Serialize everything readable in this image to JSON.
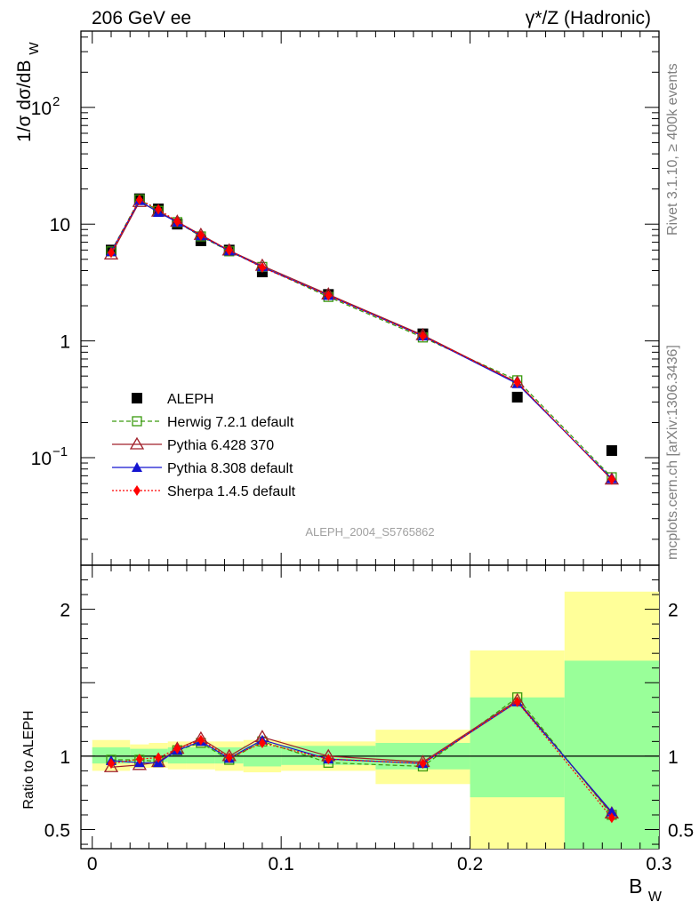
{
  "chart_data": {
    "type": "line",
    "header_left": "206 GeV ee",
    "header_right": "γ*/Z (Hadronic)",
    "ylabel": "1/σ  dσ/dB_W",
    "xlabel": "B_W",
    "ratio_ylabel": "Ratio to ALEPH",
    "analysis_label": "ALEPH_2004_S5765862",
    "rivet_label": "Rivet 3.1.10, ≥ 400k events",
    "mcplots_label": "mcplots.cern.ch [arXiv:1306.3436]",
    "xlim": [
      -0.006,
      0.3
    ],
    "ylim_main": [
      0.012,
      450
    ],
    "ylim_ratio": [
      0.37,
      2.3
    ],
    "x_ticks": [
      "0",
      "0.1",
      "0.2",
      "0.3"
    ],
    "x_tick_values": [
      0,
      0.1,
      0.2,
      0.3
    ],
    "y_ticks_main": [
      {
        "value": 100,
        "label": "10",
        "sup": "2"
      },
      {
        "value": 10,
        "label": "10",
        "sup": ""
      },
      {
        "value": 1,
        "label": "1",
        "sup": ""
      },
      {
        "value": 0.1,
        "label": "10",
        "sup": "−1"
      }
    ],
    "y_ticks_ratio": [
      {
        "value": 0.5,
        "label": "0.5"
      },
      {
        "value": 1,
        "label": "1"
      },
      {
        "value": 2,
        "label": "2"
      }
    ],
    "bin_edges": [
      0,
      0.02,
      0.03,
      0.04,
      0.05,
      0.065,
      0.08,
      0.1,
      0.15,
      0.2,
      0.25,
      0.3
    ],
    "x": [
      0.01,
      0.025,
      0.035,
      0.045,
      0.0575,
      0.0725,
      0.09,
      0.125,
      0.175,
      0.225,
      0.275
    ],
    "band_green": [
      [
        0.95,
        1.06
      ],
      [
        0.96,
        1.05
      ],
      [
        0.96,
        1.05
      ],
      [
        0.95,
        1.06
      ],
      [
        0.95,
        1.06
      ],
      [
        0.95,
        1.06
      ],
      [
        0.93,
        1.07
      ],
      [
        0.94,
        1.07
      ],
      [
        0.91,
        1.09
      ],
      [
        0.72,
        1.4
      ],
      [
        0.37,
        1.65
      ]
    ],
    "band_yellow": [
      [
        0.9,
        1.11
      ],
      [
        0.92,
        1.08
      ],
      [
        0.92,
        1.09
      ],
      [
        0.91,
        1.1
      ],
      [
        0.91,
        1.1
      ],
      [
        0.9,
        1.1
      ],
      [
        0.89,
        1.11
      ],
      [
        0.9,
        1.1
      ],
      [
        0.81,
        1.18
      ],
      [
        0.37,
        1.72
      ],
      [
        0.37,
        2.12
      ]
    ],
    "series": [
      {
        "name": "ALEPH",
        "role": "data",
        "color": "#000000",
        "marker": "square-filled",
        "values": [
          6.0,
          16.5,
          13.5,
          10.0,
          7.2,
          6.0,
          3.9,
          2.5,
          1.15,
          0.33,
          0.115
        ]
      },
      {
        "name": "Herwig 7.2.1 default",
        "color": "#3a9a0e",
        "marker": "square-open",
        "dash": "5,3",
        "values": [
          5.85,
          16.3,
          13.0,
          10.4,
          7.85,
          5.85,
          4.3,
          2.38,
          1.07,
          0.46,
          0.068
        ],
        "ratio": [
          0.975,
          0.975,
          0.962,
          1.04,
          1.09,
          0.975,
          1.1,
          0.955,
          0.93,
          1.4,
          0.6
        ]
      },
      {
        "name": "Pythia 6.428 370",
        "color": "#a0202a",
        "marker": "triangle-open",
        "dash": "",
        "values": [
          5.5,
          15.5,
          12.8,
          10.5,
          8.1,
          5.95,
          4.4,
          2.5,
          1.12,
          0.44,
          0.065
        ],
        "ratio": [
          0.925,
          0.94,
          0.96,
          1.05,
          1.12,
          1.0,
          1.13,
          1.0,
          0.96,
          1.38,
          0.61
        ]
      },
      {
        "name": "Pythia 8.308 default",
        "color": "#1414d0",
        "marker": "triangle-filled",
        "dash": "",
        "values": [
          5.8,
          15.9,
          12.6,
          10.4,
          7.95,
          5.9,
          4.3,
          2.45,
          1.1,
          0.43,
          0.066
        ],
        "ratio": [
          0.97,
          0.955,
          0.955,
          1.04,
          1.1,
          0.985,
          1.11,
          0.98,
          0.95,
          1.37,
          0.62
        ]
      },
      {
        "name": "Sherpa 1.4.5 default",
        "color": "#ff0000",
        "marker": "diamond-filled",
        "dash": "2,2",
        "values": [
          5.7,
          16.2,
          13.4,
          10.5,
          8.0,
          5.95,
          4.25,
          2.45,
          1.1,
          0.44,
          0.065
        ],
        "ratio": [
          0.95,
          0.98,
          0.99,
          1.05,
          1.11,
          0.99,
          1.09,
          0.98,
          0.95,
          1.37,
          0.58
        ]
      }
    ]
  }
}
